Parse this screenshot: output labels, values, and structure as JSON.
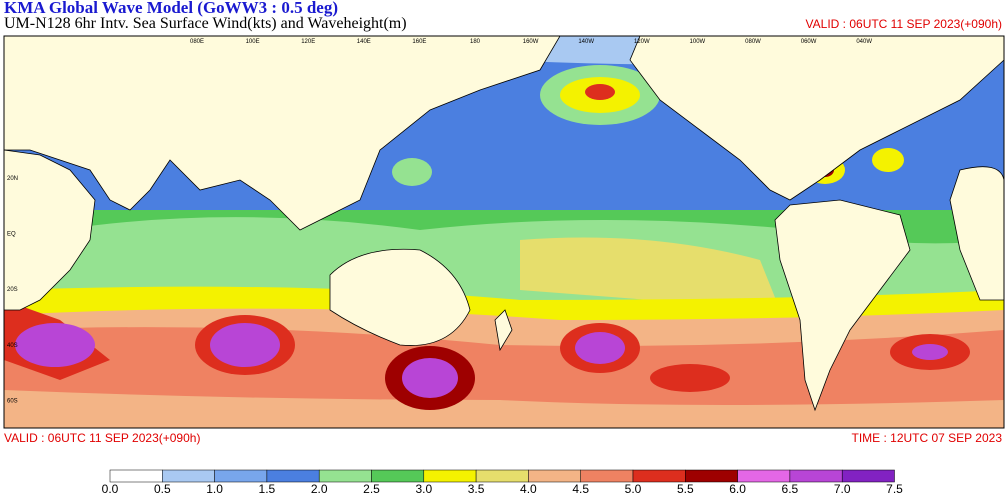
{
  "header": {
    "title": "KMA  Global Wave Model (GoWW3 : 0.5 deg)",
    "subtitle": "UM-N128  6hr Intv. Sea Surface Wind(kts) and Waveheight(m)",
    "valid_top": "VALID : 06UTC 11 SEP 2023(+090h)"
  },
  "footer": {
    "valid": "VALID : 06UTC 11 SEP 2023(+090h)",
    "time": "TIME : 12UTC 07 SEP 2023"
  },
  "map": {
    "lon_labels": [
      "080E",
      "100E",
      "120E",
      "140E",
      "160E",
      "180",
      "160W",
      "140W",
      "120W",
      "100W",
      "080W",
      "060W",
      "040W"
    ],
    "lat_labels": [
      "20N",
      "EQ",
      "20S",
      "40S",
      "60S"
    ]
  },
  "colorbar": {
    "labels": [
      "0.0",
      "0.5",
      "1.0",
      "1.5",
      "2.0",
      "2.5",
      "3.0",
      "3.5",
      "4.0",
      "4.5",
      "5.0",
      "5.5",
      "6.0",
      "6.5",
      "7.0",
      "7.5"
    ],
    "colors": [
      "#ffffff",
      "#a9c9f2",
      "#78a6ec",
      "#4b7fe0",
      "#95e291",
      "#55c958",
      "#f4f200",
      "#e6de6c",
      "#f3b486",
      "#ef8262",
      "#dd2e1e",
      "#9e0000",
      "#e467e6",
      "#b845d6",
      "#8222c2"
    ]
  }
}
